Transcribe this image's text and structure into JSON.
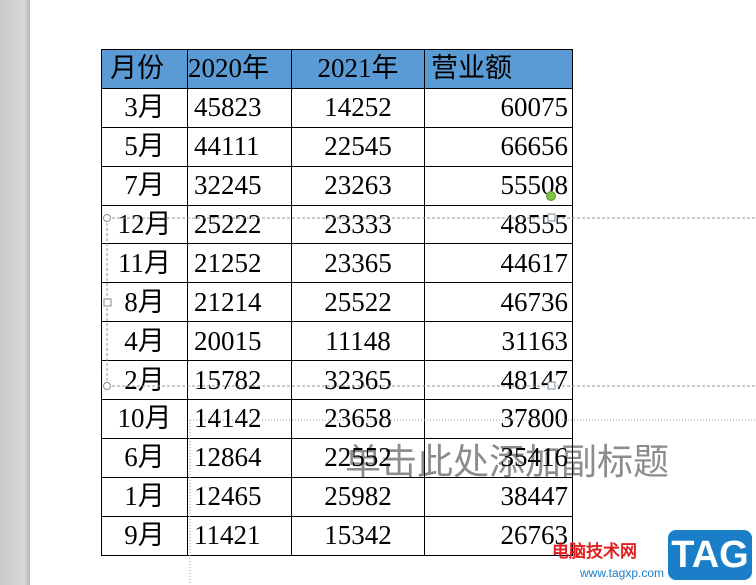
{
  "table": {
    "header": [
      "月份",
      "2020年",
      "2021年",
      "营业额"
    ],
    "rows": [
      [
        "3月",
        "45823",
        "14252",
        "60075"
      ],
      [
        "5月",
        "44111",
        "22545",
        "66656"
      ],
      [
        "7月",
        "32245",
        "23263",
        "55508"
      ],
      [
        "12月",
        "25222",
        "23333",
        "48555"
      ],
      [
        "11月",
        "21252",
        "23365",
        "44617"
      ],
      [
        "8月",
        "21214",
        "25522",
        "46736"
      ],
      [
        "4月",
        "20015",
        "11148",
        "31163"
      ],
      [
        "2月",
        "15782",
        "32365",
        "48147"
      ],
      [
        "10月",
        "14142",
        "23658",
        "37800"
      ],
      [
        "6月",
        "12864",
        "22552",
        "35416"
      ],
      [
        "1月",
        "12465",
        "25982",
        "38447"
      ],
      [
        "9月",
        "11421",
        "15342",
        "26763"
      ]
    ]
  },
  "placeholder": "单击此处添加副标题",
  "watermark": {
    "site": "电脑技术网",
    "logo": "TAG",
    "url": "www.tagxp.com"
  }
}
